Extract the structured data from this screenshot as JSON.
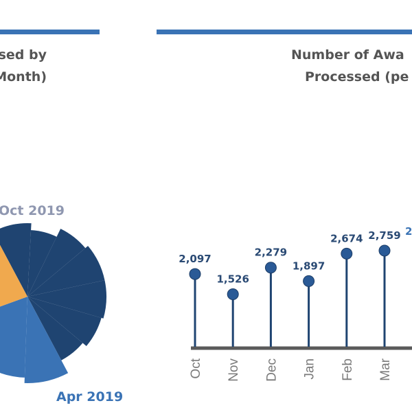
{
  "colors": {
    "accent_bar": "#3a73b5",
    "navy": "#1f4471",
    "medium_blue": "#3a73b5",
    "orange": "#f0a94e",
    "title_text": "#545454",
    "value_label": "#2a4a74",
    "axis": "#5a5a5a",
    "tick_label": "#7a7a7a"
  },
  "left_panel": {
    "title_line1": "ssed by",
    "title_line2": "Month)",
    "legend_top": "Oct 2019",
    "legend_bottom": "Apr 2019"
  },
  "right_panel": {
    "title_line1": "Number of Awa",
    "title_line2": "Processed (pe"
  },
  "chart_data": [
    {
      "type": "pie",
      "title": "...ssed by ...Month)",
      "annotations": [
        "Oct 2019",
        "Apr 2019"
      ],
      "slices": [
        {
          "name": "navy (rose segments)",
          "color": "#1f4471",
          "segments": 7
        },
        {
          "name": "medium blue",
          "color": "#3a73b5",
          "segments": 2
        },
        {
          "name": "orange",
          "color": "#f0a94e",
          "segments": 1
        }
      ]
    },
    {
      "type": "lollipop",
      "title": "Number of Awa... Processed (pe...",
      "categories": [
        "Oct",
        "Nov",
        "Dec",
        "Jan",
        "Feb",
        "Mar"
      ],
      "values": [
        2097,
        1526,
        2279,
        1897,
        2674,
        2759
      ],
      "value_labels": [
        "2,097",
        "1,526",
        "2,279",
        "1,897",
        "2,674",
        "2,759"
      ],
      "partial_next_label": "2",
      "ylim": [
        0,
        4000
      ],
      "xlabel": "",
      "ylabel": "",
      "grid": false
    }
  ]
}
